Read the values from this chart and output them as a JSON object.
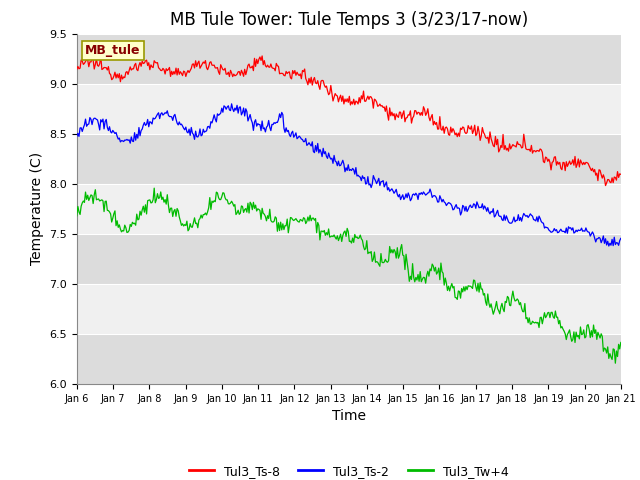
{
  "title": "MB Tule Tower: Tule Temps 3 (3/23/17-now)",
  "xlabel": "Time",
  "ylabel": "Temperature (C)",
  "ylim": [
    6.0,
    9.5
  ],
  "yticks": [
    6.0,
    6.5,
    7.0,
    7.5,
    8.0,
    8.5,
    9.0,
    9.5
  ],
  "x_labels": [
    "Jan 6",
    "Jan 7",
    "Jan 8",
    "Jan 9",
    "Jan 10",
    "Jan 11",
    "Jan 12",
    "Jan 13",
    "Jan 14",
    "Jan 15",
    "Jan 16",
    "Jan 17",
    "Jan 18",
    "Jan 19",
    "Jan 20",
    "Jan 21"
  ],
  "num_points": 500,
  "line_colors": [
    "#ff0000",
    "#0000ff",
    "#00bb00"
  ],
  "line_labels": [
    "Tul3_Ts-8",
    "Tul3_Ts-2",
    "Tul3_Tw+4"
  ],
  "legend_box_color": "#ffffcc",
  "legend_box_edge": "#999900",
  "legend_box_text": "MB_tule",
  "legend_box_text_color": "#880000",
  "title_fontsize": 12,
  "axis_fontsize": 10,
  "tick_fontsize": 8,
  "legend_fontsize": 9,
  "band_colors_even": "#f0f0f0",
  "band_colors_odd": "#dcdcdc"
}
